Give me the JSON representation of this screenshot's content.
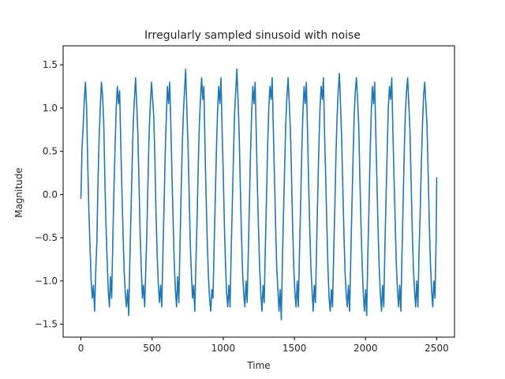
{
  "chart_data": {
    "type": "line",
    "title": "Irregularly sampled sinusoid with noise",
    "xlabel": "Time",
    "ylabel": "Magnitude",
    "xlim": [
      -125,
      2625
    ],
    "ylim": [
      -1.65,
      1.72
    ],
    "xticks": [
      0,
      500,
      1000,
      1500,
      2000,
      2500
    ],
    "yticks": [
      -1.5,
      -1.0,
      -0.5,
      0.0,
      0.5,
      1.0,
      1.5
    ],
    "xtick_labels": [
      "0",
      "500",
      "1000",
      "1500",
      "2000",
      "2500"
    ],
    "ytick_labels": [
      "−1.5",
      "−1.0",
      "−0.5",
      "0.0",
      "0.5",
      "1.0",
      "1.5"
    ],
    "grid": false,
    "line_color": "#1f77b4",
    "series": [
      {
        "x": [
          0,
          8,
          16,
          24,
          32,
          40,
          48,
          56,
          64,
          72,
          80,
          88,
          96,
          104,
          112,
          120,
          128,
          136,
          144,
          152,
          160,
          168,
          176,
          184,
          192,
          200,
          208,
          216,
          224,
          232,
          240,
          248,
          256,
          264,
          272,
          280,
          288,
          296,
          304,
          312,
          320,
          328,
          336,
          344,
          352,
          360,
          368,
          376,
          384,
          392,
          400,
          408,
          416,
          424,
          432,
          440,
          448,
          456,
          464,
          472,
          480,
          488,
          496,
          504,
          512,
          520,
          528,
          536,
          544,
          552,
          560,
          568,
          576,
          584,
          592,
          600,
          608,
          616,
          624,
          632,
          640,
          648,
          656,
          664,
          672,
          680,
          688,
          696,
          704,
          712,
          720,
          728,
          736,
          744,
          752,
          760,
          768,
          776,
          784,
          792,
          800,
          808,
          816,
          824,
          832,
          840,
          848,
          856,
          864,
          872,
          880,
          888,
          896,
          904,
          912,
          920,
          928,
          936,
          944,
          952,
          960,
          968,
          976,
          984,
          992,
          1000,
          1008,
          1016,
          1024,
          1032,
          1040,
          1048,
          1056,
          1064,
          1072,
          1080,
          1088,
          1096,
          1104,
          1112,
          1120,
          1128,
          1136,
          1144,
          1152,
          1160,
          1168,
          1176,
          1184,
          1192,
          1200,
          1208,
          1216,
          1224,
          1232,
          1240,
          1248,
          1256,
          1264,
          1272,
          1280,
          1288,
          1296,
          1304,
          1312,
          1320,
          1328,
          1336,
          1344,
          1352,
          1360,
          1368,
          1376,
          1384,
          1392,
          1400,
          1408,
          1416,
          1424,
          1432,
          1440,
          1448,
          1456,
          1464,
          1472,
          1480,
          1488,
          1496,
          1504,
          1512,
          1520,
          1528,
          1536,
          1544,
          1552,
          1560,
          1568,
          1576,
          1584,
          1592,
          1600,
          1608,
          1616,
          1624,
          1632,
          1640,
          1648,
          1656,
          1664,
          1672,
          1680,
          1688,
          1696,
          1704,
          1712,
          1720,
          1728,
          1736,
          1744,
          1752,
          1760,
          1768,
          1776,
          1784,
          1792,
          1800,
          1808,
          1816,
          1824,
          1832,
          1840,
          1848,
          1856,
          1864,
          1872,
          1880,
          1888,
          1896,
          1904,
          1912,
          1920,
          1928,
          1936,
          1944,
          1952,
          1960,
          1968,
          1976,
          1984,
          1992,
          2000,
          2008,
          2016,
          2024,
          2032,
          2040,
          2048,
          2056,
          2064,
          2072,
          2080,
          2088,
          2096,
          2104,
          2112,
          2120,
          2128,
          2136,
          2144,
          2152,
          2160,
          2168,
          2176,
          2184,
          2192,
          2200,
          2208,
          2216,
          2224,
          2232,
          2240,
          2248,
          2256,
          2264,
          2272,
          2280,
          2288,
          2296,
          2304,
          2312,
          2320,
          2328,
          2336,
          2344,
          2352,
          2360,
          2368,
          2376,
          2384,
          2392,
          2400,
          2408,
          2416,
          2424,
          2432,
          2440,
          2448,
          2456,
          2464,
          2472,
          2480,
          2488,
          2496,
          2500
        ],
        "y": [
          -0.05,
          0.55,
          0.8,
          1.1,
          1.3,
          1.0,
          0.35,
          -0.2,
          -0.6,
          -1.0,
          -1.2,
          -1.05,
          -1.35,
          -0.9,
          -0.55,
          0.15,
          0.65,
          1.0,
          1.3,
          1.15,
          0.85,
          0.2,
          -0.35,
          -0.75,
          -1.1,
          -1.3,
          -0.95,
          -1.2,
          -0.55,
          0.05,
          0.55,
          1.0,
          1.25,
          1.05,
          1.2,
          0.6,
          0.05,
          -0.45,
          -0.9,
          -1.15,
          -1.3,
          -1.1,
          -1.4,
          -0.75,
          -0.2,
          0.35,
          0.85,
          1.1,
          1.35,
          1.05,
          0.7,
          0.15,
          -0.45,
          -0.85,
          -1.2,
          -1.05,
          -1.3,
          -0.85,
          -0.4,
          0.2,
          0.75,
          1.05,
          1.3,
          1.1,
          0.9,
          0.4,
          -0.25,
          -0.7,
          -1.05,
          -1.25,
          -1.05,
          -1.3,
          -0.7,
          -0.15,
          0.45,
          0.9,
          1.25,
          1.05,
          1.3,
          0.8,
          0.2,
          -0.3,
          -0.8,
          -1.1,
          -1.3,
          -0.95,
          -1.25,
          -0.6,
          0.0,
          0.55,
          0.95,
          1.2,
          1.45,
          1.0,
          0.6,
          0.05,
          -0.55,
          -0.9,
          -1.2,
          -1.05,
          -1.35,
          -0.8,
          -0.3,
          0.3,
          0.8,
          1.1,
          1.35,
          1.1,
          1.25,
          0.55,
          -0.05,
          -0.55,
          -0.95,
          -1.2,
          -1.35,
          -1.1,
          -1.2,
          -0.6,
          -0.05,
          0.5,
          0.95,
          1.25,
          1.05,
          1.35,
          0.75,
          0.25,
          -0.35,
          -0.8,
          -1.15,
          -1.3,
          -1.05,
          -1.3,
          -0.65,
          -0.1,
          0.45,
          0.95,
          1.2,
          1.45,
          1.1,
          0.7,
          0.1,
          -0.45,
          -0.9,
          -1.15,
          -1.3,
          -1.0,
          -1.25,
          -0.7,
          -0.1,
          0.5,
          0.95,
          1.25,
          1.05,
          1.3,
          0.7,
          0.1,
          -0.4,
          -0.85,
          -1.15,
          -1.35,
          -1.05,
          -1.25,
          -0.6,
          -0.05,
          0.55,
          1.0,
          1.25,
          1.1,
          1.35,
          0.75,
          0.2,
          -0.35,
          -0.85,
          -1.1,
          -1.35,
          -1.1,
          -1.45,
          -0.75,
          -0.2,
          0.35,
          0.85,
          1.15,
          1.35,
          1.05,
          0.75,
          0.2,
          -0.4,
          -0.85,
          -1.15,
          -1.3,
          -1.0,
          -1.3,
          -0.65,
          -0.1,
          0.5,
          0.95,
          1.25,
          1.05,
          1.3,
          0.75,
          0.15,
          -0.4,
          -0.85,
          -1.1,
          -1.35,
          -1.05,
          -1.25,
          -0.6,
          0.0,
          0.55,
          1.0,
          1.25,
          1.1,
          1.35,
          0.7,
          0.2,
          -0.35,
          -0.85,
          -1.2,
          -1.35,
          -1.1,
          -1.3,
          -0.7,
          -0.15,
          0.45,
          0.9,
          1.2,
          1.4,
          1.05,
          0.65,
          0.1,
          -0.45,
          -0.9,
          -1.15,
          -1.3,
          -1.05,
          -1.35,
          -0.75,
          -0.15,
          0.4,
          0.9,
          1.2,
          1.35,
          1.1,
          0.8,
          0.2,
          -0.35,
          -0.8,
          -1.15,
          -1.35,
          -1.1,
          -1.4,
          -0.7,
          -0.15,
          0.45,
          0.95,
          1.25,
          1.05,
          1.3,
          0.7,
          0.15,
          -0.4,
          -0.85,
          -1.15,
          -1.35,
          -1.05,
          -1.3,
          -0.6,
          -0.05,
          0.5,
          1.0,
          1.25,
          1.1,
          1.35,
          0.75,
          0.2,
          -0.3,
          -0.8,
          -1.1,
          -1.3,
          -1.05,
          -1.35,
          -0.7,
          -0.1,
          0.5,
          0.95,
          1.2,
          1.35,
          1.05,
          0.75,
          0.15,
          -0.4,
          -0.85,
          -1.1,
          -1.3,
          -1.0,
          -1.3,
          -0.65,
          -0.2,
          0.35,
          0.8,
          1.15,
          1.3,
          1.05,
          0.8,
          0.25,
          -0.35,
          -0.8,
          -1.1,
          -1.3,
          -1.0,
          -1.2,
          -0.5,
          0.2
        ]
      }
    ]
  }
}
